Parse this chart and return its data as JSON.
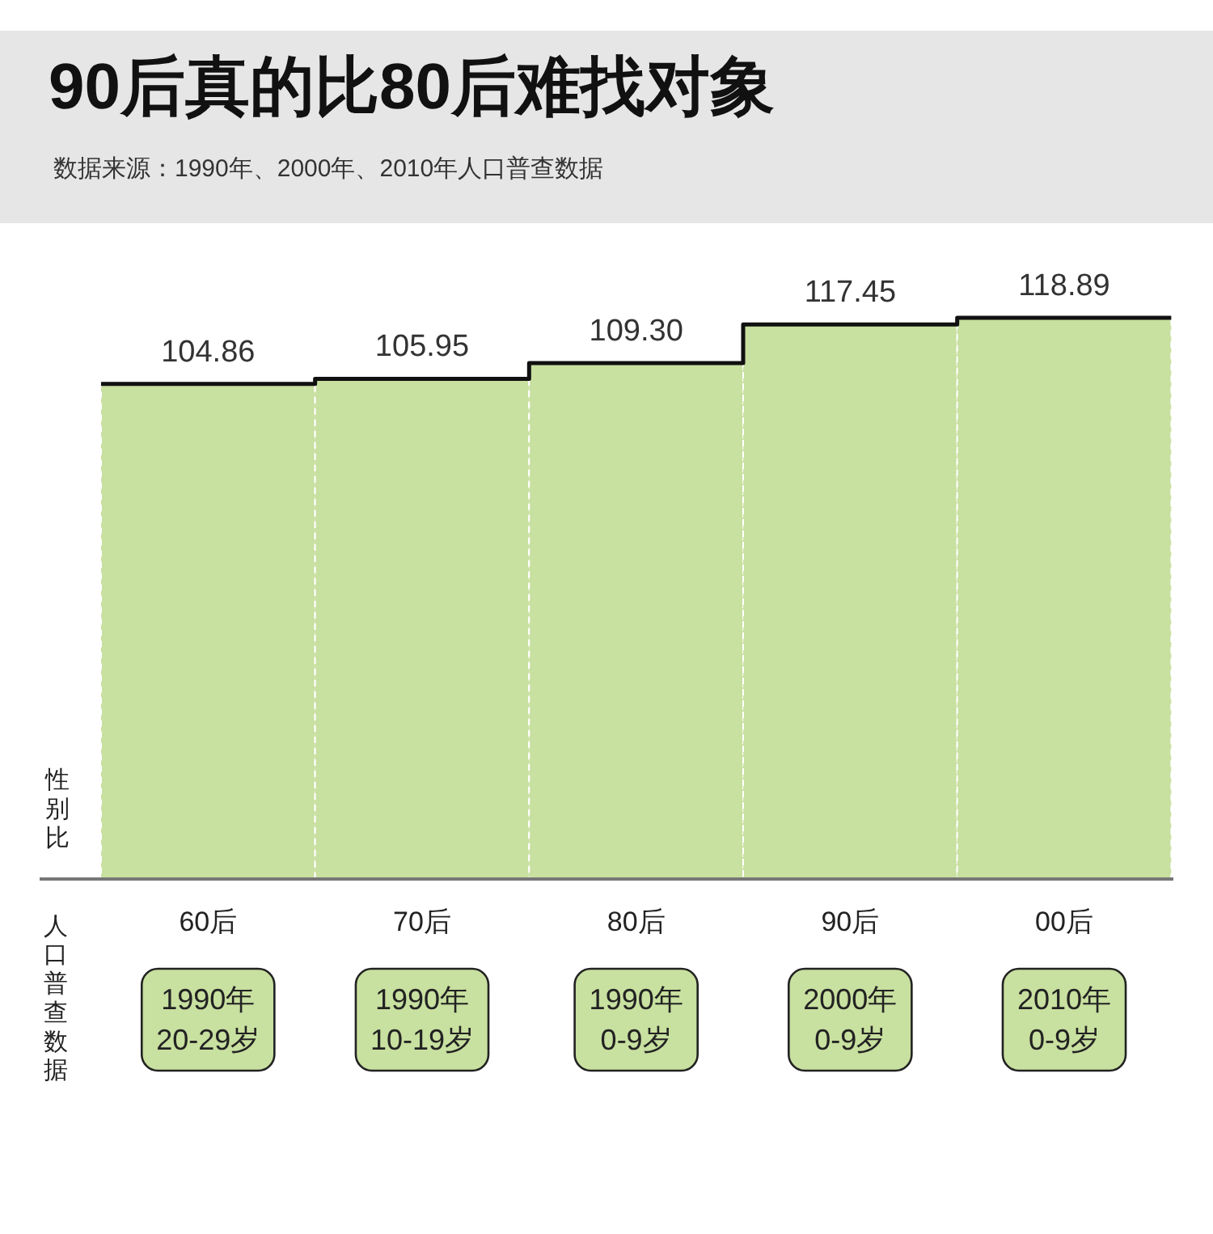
{
  "chart_data": {
    "type": "bar",
    "title": "90后真的比80后难找对象",
    "subtitle": "数据来源：1990年、2000年、2010年人口普查数据",
    "ylabel": "性别比",
    "categories": [
      "60后",
      "70后",
      "80后",
      "90后",
      "00后"
    ],
    "values": [
      104.86,
      105.95,
      109.3,
      117.45,
      118.89
    ],
    "value_labels": [
      "104.86",
      "105.95",
      "109.30",
      "117.45",
      "118.89"
    ],
    "color": "#c8e0a0",
    "annotations": [
      "人口普查数据",
      "1990年\n20-29岁",
      "1990年\n10-19岁",
      "1990年\n0-9岁",
      "2000年\n0-9岁",
      "2010年\n0-9岁"
    ]
  }
}
